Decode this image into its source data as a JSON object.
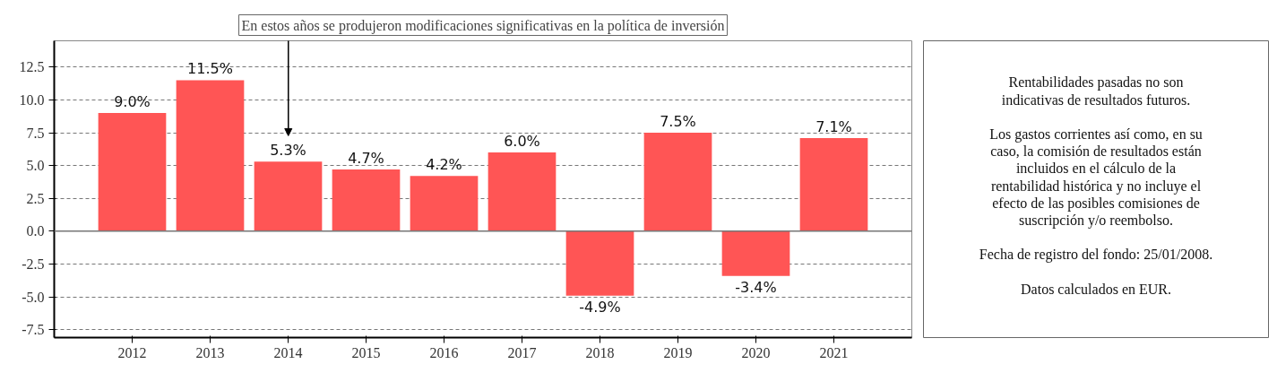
{
  "chart_data": {
    "type": "bar",
    "categories": [
      "2012",
      "2013",
      "2014",
      "2015",
      "2016",
      "2017",
      "2018",
      "2019",
      "2020",
      "2021"
    ],
    "values": [
      9.0,
      11.5,
      5.3,
      4.7,
      4.2,
      6.0,
      -4.9,
      7.5,
      -3.4,
      7.1
    ],
    "value_labels": [
      "9.0%",
      "11.5%",
      "5.3%",
      "4.7%",
      "4.2%",
      "6.0%",
      "-4.9%",
      "7.5%",
      "-3.4%",
      "7.1%"
    ],
    "color": "#ff5555",
    "ylim": [
      -8.1,
      14.5
    ],
    "yticks": [
      {
        "value": -7.5,
        "label": "-7.5"
      },
      {
        "value": -5,
        "label": "-5.0"
      },
      {
        "value": -2.5,
        "label": "-2.5"
      },
      {
        "value": 0,
        "label": "0.0"
      },
      {
        "value": 2.5,
        "label": "2.5"
      },
      {
        "value": 5,
        "label": "5.0"
      },
      {
        "value": 7.5,
        "label": "7.5"
      },
      {
        "value": 10,
        "label": "10.0"
      },
      {
        "value": 12.5,
        "label": "12.5"
      }
    ],
    "grid": "y",
    "ref_lines": [
      {
        "axis": "y",
        "value": 0
      }
    ],
    "annotations": [
      "En estos años se produjeron modificaciones significativas en la política de inversión",
      "Rentabilidades pasadas no son indicativas de resultados futuros.",
      "Los gastos corrientes así como, en su caso, la comisión de resultados están incluidos en el cálculo de la rentabilidad histórica y no incluye el efecto de las posibles comisiones de suscripción y/o reembolso.",
      "Fecha de registro del fondo: 25/01/2008.",
      "Datos calculados en EUR."
    ]
  }
}
